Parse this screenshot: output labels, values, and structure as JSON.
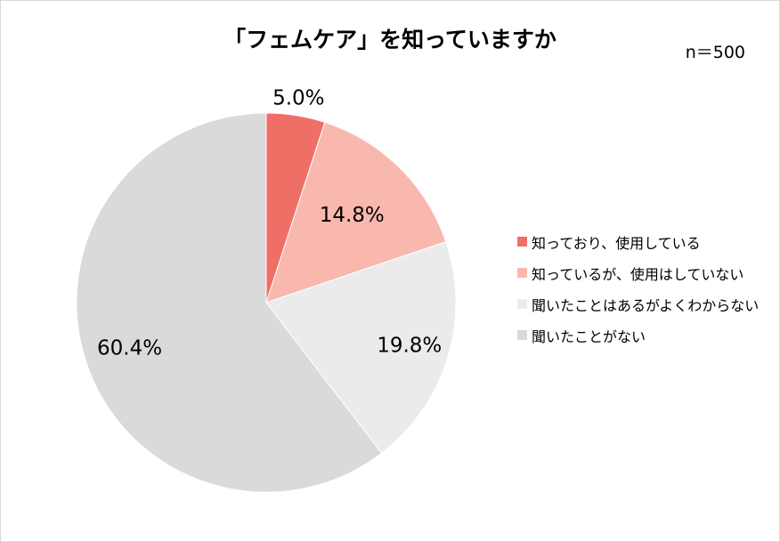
{
  "chart_data": {
    "type": "pie",
    "title": "「フェムケア」を知っていますか",
    "sample_note": "n＝500",
    "legend_position": "right",
    "slices": [
      {
        "label": "知っており、使用している",
        "value": 5.0,
        "display": "5.0%",
        "color": "#ef6f67"
      },
      {
        "label": "知っているが、使用はしていない",
        "value": 14.8,
        "display": "14.8%",
        "color": "#f9b8ad"
      },
      {
        "label": "聞いたことはあるがよくわからない",
        "value": 19.8,
        "display": "19.8%",
        "color": "#ebebeb"
      },
      {
        "label": "聞いたことがない",
        "value": 60.4,
        "display": "60.4%",
        "color": "#dadada"
      }
    ]
  }
}
